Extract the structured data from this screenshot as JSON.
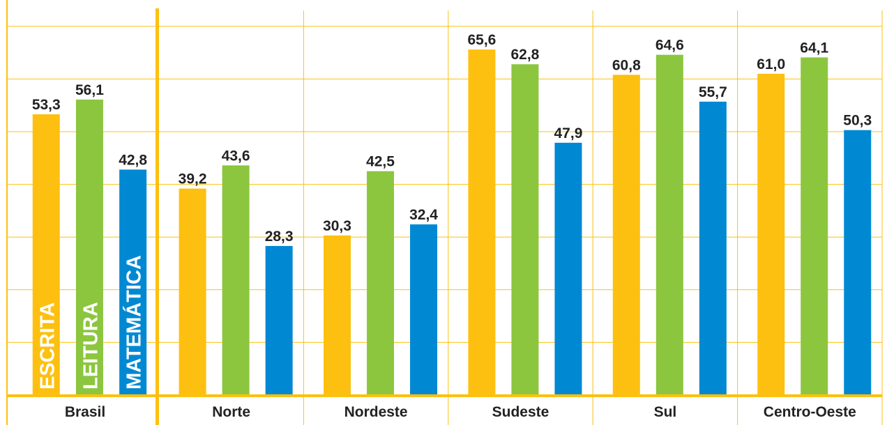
{
  "chart_data": {
    "type": "bar",
    "categories": [
      "Brasil",
      "Norte",
      "Nordeste",
      "Sudeste",
      "Sul",
      "Centro-Oeste"
    ],
    "series": [
      {
        "name": "ESCRITA",
        "color": "#fdc010",
        "values": [
          53.3,
          39.2,
          30.3,
          65.6,
          60.8,
          61.0
        ],
        "value_labels": [
          "53,3",
          "39,2",
          "30,3",
          "65,6",
          "60,8",
          "61,0"
        ]
      },
      {
        "name": "LEITURA",
        "color": "#8cc63f",
        "values": [
          56.1,
          43.6,
          42.5,
          62.8,
          64.6,
          64.1
        ],
        "value_labels": [
          "56,1",
          "43,6",
          "42,5",
          "62,8",
          "64,6",
          "64,1"
        ]
      },
      {
        "name": "MATEMÁTICA",
        "color": "#0089d2",
        "values": [
          42.8,
          28.3,
          32.4,
          47.9,
          55.7,
          50.3
        ],
        "value_labels": [
          "42,8",
          "28,3",
          "32,4",
          "47,9",
          "55,7",
          "50,3"
        ]
      }
    ],
    "ylim": [
      0,
      75
    ],
    "yticks": [
      0,
      10,
      20,
      30,
      40,
      50,
      60,
      70
    ],
    "grid": true
  }
}
